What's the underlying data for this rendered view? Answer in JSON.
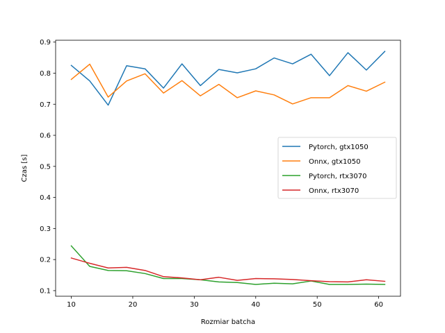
{
  "chart_data": {
    "type": "line",
    "title": "",
    "xlabel": "Rozmiar batcha",
    "ylabel": "Czas [s]",
    "xlim": [
      7.45,
      63.55
    ],
    "ylim": [
      0.082,
      0.906
    ],
    "xticks": [
      10,
      20,
      30,
      40,
      50,
      60
    ],
    "yticks": [
      0.1,
      0.2,
      0.3,
      0.4,
      0.5,
      0.6,
      0.7,
      0.8,
      0.9
    ],
    "grid": false,
    "legend_position": "center-right",
    "x": [
      10,
      13,
      16,
      19,
      22,
      25,
      28,
      31,
      34,
      37,
      40,
      43,
      46,
      49,
      52,
      55,
      58,
      61
    ],
    "series": [
      {
        "name": "Pytorch, gtx1050",
        "color": "#1f77b4",
        "values": [
          0.825,
          0.775,
          0.697,
          0.824,
          0.814,
          0.752,
          0.83,
          0.76,
          0.812,
          0.801,
          0.814,
          0.849,
          0.83,
          0.861,
          0.792,
          0.866,
          0.81,
          0.87
        ]
      },
      {
        "name": "Onnx, gtx1050",
        "color": "#ff7f0e",
        "values": [
          0.78,
          0.829,
          0.723,
          0.775,
          0.798,
          0.736,
          0.776,
          0.727,
          0.764,
          0.721,
          0.743,
          0.73,
          0.701,
          0.721,
          0.721,
          0.76,
          0.742,
          0.771
        ]
      },
      {
        "name": "Pytorch, rtx3070",
        "color": "#2ca02c",
        "values": [
          0.244,
          0.178,
          0.165,
          0.164,
          0.155,
          0.139,
          0.139,
          0.135,
          0.128,
          0.126,
          0.12,
          0.124,
          0.122,
          0.131,
          0.12,
          0.12,
          0.121,
          0.12
        ]
      },
      {
        "name": "Onnx, rtx3070",
        "color": "#d62728",
        "values": [
          0.205,
          0.188,
          0.173,
          0.175,
          0.165,
          0.145,
          0.141,
          0.135,
          0.143,
          0.133,
          0.139,
          0.138,
          0.136,
          0.132,
          0.129,
          0.128,
          0.135,
          0.13
        ]
      }
    ]
  }
}
